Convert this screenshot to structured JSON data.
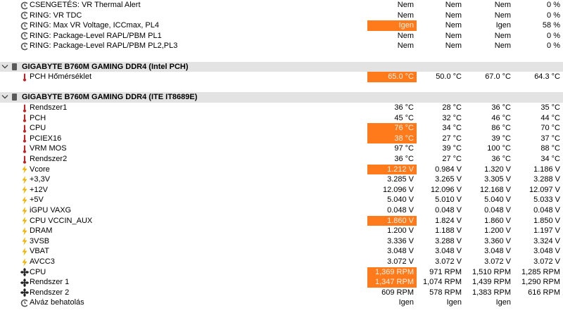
{
  "rows": [
    {
      "kind": "data",
      "icon": "clock-icon",
      "name": "CSENGETÉS: VR Thermal Alert",
      "v": [
        "Nem",
        "Nem",
        "Nem",
        "0 %"
      ],
      "hl": false
    },
    {
      "kind": "data",
      "icon": "clock-icon",
      "name": "RING: VR TDC",
      "v": [
        "Nem",
        "Nem",
        "Nem",
        "0 %"
      ],
      "hl": false
    },
    {
      "kind": "data",
      "icon": "clock-icon",
      "name": "RING: Max VR Voltage, ICCmax, PL4",
      "v": [
        "Igen",
        "Nem",
        "Igen",
        "58 %"
      ],
      "hl": true
    },
    {
      "kind": "data",
      "icon": "clock-icon",
      "name": "RING: Package-Level RAPL/PBM PL1",
      "v": [
        "Nem",
        "Nem",
        "Nem",
        "0 %"
      ],
      "hl": false
    },
    {
      "kind": "data",
      "icon": "clock-icon",
      "name": "RING: Package-Level RAPL/PBM PL2,PL3",
      "v": [
        "Nem",
        "Nem",
        "Nem",
        "0 %"
      ],
      "hl": false
    },
    {
      "kind": "spacer"
    },
    {
      "kind": "group",
      "title": "GIGABYTE B760M GAMING DDR4 (Intel PCH)"
    },
    {
      "kind": "data",
      "icon": "thermometer-icon",
      "name": "PCH Hőmérséklet",
      "v": [
        "65.0 °C",
        "50.0 °C",
        "67.0 °C",
        "64.3 °C"
      ],
      "hl": true
    },
    {
      "kind": "spacer"
    },
    {
      "kind": "group",
      "title": "GIGABYTE B760M GAMING DDR4 (ITE IT8689E)"
    },
    {
      "kind": "data",
      "icon": "thermometer-icon",
      "name": "Rendszer1",
      "v": [
        "36 °C",
        "28 °C",
        "36 °C",
        "35 °C"
      ],
      "hl": false
    },
    {
      "kind": "data",
      "icon": "thermometer-icon",
      "name": "PCH",
      "v": [
        "45 °C",
        "32 °C",
        "46 °C",
        "44 °C"
      ],
      "hl": false
    },
    {
      "kind": "data",
      "icon": "thermometer-icon",
      "name": "CPU",
      "v": [
        "76 °C",
        "34 °C",
        "86 °C",
        "70 °C"
      ],
      "hl": true
    },
    {
      "kind": "data",
      "icon": "thermometer-icon",
      "name": "PCIEX16",
      "v": [
        "38 °C",
        "27 °C",
        "39 °C",
        "37 °C"
      ],
      "hl": true
    },
    {
      "kind": "data",
      "icon": "thermometer-icon",
      "name": "VRM MOS",
      "v": [
        "97 °C",
        "39 °C",
        "100 °C",
        "88 °C"
      ],
      "hl": false
    },
    {
      "kind": "data",
      "icon": "thermometer-icon",
      "name": "Rendszer2",
      "v": [
        "36 °C",
        "27 °C",
        "36 °C",
        "34 °C"
      ],
      "hl": false
    },
    {
      "kind": "data",
      "icon": "lightning-icon",
      "name": "Vcore",
      "v": [
        "1.212 V",
        "0.984 V",
        "1.320 V",
        "1.186 V"
      ],
      "hl": true
    },
    {
      "kind": "data",
      "icon": "lightning-icon",
      "name": "+3,3V",
      "v": [
        "3.285 V",
        "3.265 V",
        "3.305 V",
        "3.288 V"
      ],
      "hl": false
    },
    {
      "kind": "data",
      "icon": "lightning-icon",
      "name": "+12V",
      "v": [
        "12.096 V",
        "12.096 V",
        "12.168 V",
        "12.097 V"
      ],
      "hl": false
    },
    {
      "kind": "data",
      "icon": "lightning-icon",
      "name": "+5V",
      "v": [
        "5.040 V",
        "5.010 V",
        "5.040 V",
        "5.033 V"
      ],
      "hl": false
    },
    {
      "kind": "data",
      "icon": "lightning-icon",
      "name": "iGPU VAXG",
      "v": [
        "0.048 V",
        "0.048 V",
        "0.048 V",
        "0.048 V"
      ],
      "hl": false
    },
    {
      "kind": "data",
      "icon": "lightning-icon",
      "name": "CPU VCCIN_AUX",
      "v": [
        "1.860 V",
        "1.824 V",
        "1.860 V",
        "1.850 V"
      ],
      "hl": true
    },
    {
      "kind": "data",
      "icon": "lightning-icon",
      "name": "DRAM",
      "v": [
        "1.200 V",
        "1.188 V",
        "1.200 V",
        "1.197 V"
      ],
      "hl": false
    },
    {
      "kind": "data",
      "icon": "lightning-icon",
      "name": "3VSB",
      "v": [
        "3.336 V",
        "3.288 V",
        "3.360 V",
        "3.324 V"
      ],
      "hl": false
    },
    {
      "kind": "data",
      "icon": "lightning-icon",
      "name": "VBAT",
      "v": [
        "3.048 V",
        "3.048 V",
        "3.048 V",
        "3.048 V"
      ],
      "hl": false
    },
    {
      "kind": "data",
      "icon": "lightning-icon",
      "name": "AVCC3",
      "v": [
        "3.072 V",
        "3.072 V",
        "3.072 V",
        "3.072 V"
      ],
      "hl": false
    },
    {
      "kind": "data",
      "icon": "fan-icon",
      "name": "CPU",
      "v": [
        "1,369 RPM",
        "971 RPM",
        "1,510 RPM",
        "1,285 RPM"
      ],
      "hl": true
    },
    {
      "kind": "data",
      "icon": "fan-icon",
      "name": "Rendszer 1",
      "v": [
        "1,347 RPM",
        "1,074 RPM",
        "1,439 RPM",
        "1,290 RPM"
      ],
      "hl": true
    },
    {
      "kind": "data",
      "icon": "fan-icon",
      "name": "Rendszer 2",
      "v": [
        "609 RPM",
        "578 RPM",
        "1,383 RPM",
        "616 RPM"
      ],
      "hl": false
    },
    {
      "kind": "data",
      "icon": "clock-icon",
      "name": "Alváz behatolás",
      "v": [
        "Igen",
        "Igen",
        "Igen",
        ""
      ],
      "hl": false
    }
  ],
  "colors": {
    "highlight": "#ff7a1a",
    "group_bg": "#e3e3e3",
    "thermometer": "#c81e1e",
    "lightning": "#f0b400",
    "clock": "#555555",
    "fan": "#222222"
  }
}
